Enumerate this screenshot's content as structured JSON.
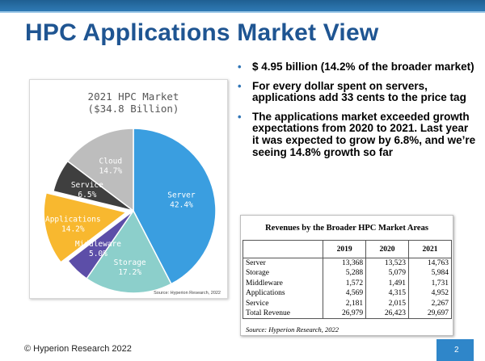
{
  "slide": {
    "title": "HPC Applications Market View",
    "footer": "© Hyperion Research 2022",
    "page_number": "2",
    "colors": {
      "title": "#1f5592",
      "accent_band": "#2f7ab5",
      "bullet": "#2f74b5",
      "page_box": "#2f86c9"
    }
  },
  "bullets": [
    {
      "text": "$ 4.95 billion (14.2% of the broader market)"
    },
    {
      "text": "For every dollar spent on servers, applications add 33 cents to the price tag"
    },
    {
      "text": "The applications market exceeded growth expectations from 2020 to 2021. Last year it was expected to grow by 6.8%, and we’re seeing 14.8% growth so far"
    }
  ],
  "chart_data": {
    "type": "pie",
    "title": "2021 HPC Market",
    "subtitle": "($34.8 Billion)",
    "source": "Source: Hyperion Research, 2022",
    "slices": [
      {
        "label": "Server",
        "value": 42.4,
        "display": "42.4%",
        "color": "#3a9ee0",
        "label_color": "#ffffff"
      },
      {
        "label": "Storage",
        "value": 17.2,
        "display": "17.2%",
        "color": "#8ccfcb",
        "label_color": "#ffffff"
      },
      {
        "label": "Middleware",
        "value": 5.0,
        "display": "5.0%",
        "color": "#5c4ea8",
        "label_color": "#ffffff"
      },
      {
        "label": "Applications",
        "value": 14.2,
        "display": "14.2%",
        "color": "#f8b82f",
        "label_color": "#ffffff",
        "exploded": true
      },
      {
        "label": "Service",
        "value": 6.5,
        "display": "6.5%",
        "color": "#3f3f3f",
        "label_color": "#ffffff"
      },
      {
        "label": "Cloud",
        "value": 14.7,
        "display": "14.7%",
        "color": "#bdbdbd",
        "label_color": "#ffffff"
      }
    ]
  },
  "revenue_table": {
    "caption": "Revenues by the Broader HPC Market Areas",
    "columns": [
      "",
      "2019",
      "2020",
      "2021"
    ],
    "rows": [
      [
        "Server",
        "13,368",
        "13,523",
        "14,763"
      ],
      [
        "Storage",
        "5,288",
        "5,079",
        "5,984"
      ],
      [
        "Middleware",
        "1,572",
        "1,491",
        "1,731"
      ],
      [
        "Applications",
        "4,569",
        "4,315",
        "4,952"
      ],
      [
        "Service",
        "2,181",
        "2,015",
        "2,267"
      ],
      [
        "Total Revenue",
        "26,979",
        "26,423",
        "29,697"
      ]
    ],
    "source": "Source: Hyperion Research, 2022"
  }
}
